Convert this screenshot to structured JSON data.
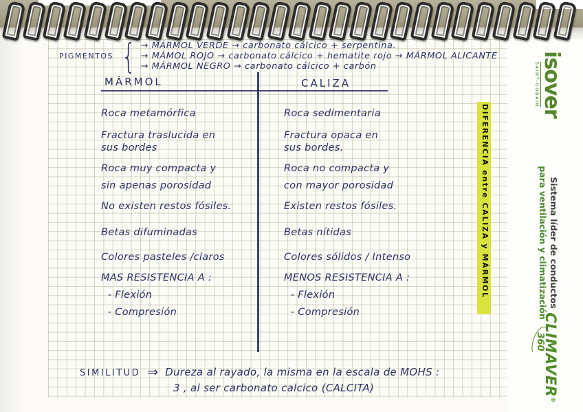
{
  "notebook": {
    "pigments": {
      "label": "PIGMENTOS",
      "brace": "{",
      "lines": [
        "→ MÁRMOL VERDE → carbonato cálcico + serpentina.",
        "→ MÁMOL ROJO → carbonato cálcico + hematite rojo → MÁRMOL ALICANTE",
        "→ MÁRMOL NEGRO → carbonato cálcico + carbón"
      ]
    },
    "table": {
      "left_header": "MÁRMOL",
      "right_header": "CALIZA",
      "rows": [
        {
          "left": "Roca metamórfica",
          "right": "Roca sedimentaria"
        },
        {
          "left": "Fractura traslucida en\nsus bordes",
          "right": "Fractura opaca en\nsus bordes."
        },
        {
          "left": "Roca muy compacta y\nsin apenas porosidad",
          "right": "Roca no compacta y\ncon mayor porosidad"
        },
        {
          "left": "No existen restos fósiles.",
          "right": "Existen restos fósiles."
        },
        {
          "left": "Betas difuminadas",
          "right": "Betas nítidas"
        },
        {
          "left": "Colores pasteles /claros",
          "right": "Colores sólidos / Intenso"
        },
        {
          "left": "MAS RESISTENCIA A :\n  - Flexión\n  - Compresión",
          "right": "MENOS RESISTENCIA A :\n  - Flexión\n  - Compresión"
        }
      ]
    },
    "side_note": "DIFERENCIA entre CALIZA y MÁRMOL",
    "similarity": {
      "label": "SIMILITUD",
      "arrow": "⇒",
      "line1": "Dureza al rayado, la misma en la escala de MOHS :",
      "line2": "3 , al ser carbonato calcico (CALCITA)"
    }
  },
  "margin_branding": {
    "brand": "isover",
    "brand_sub": "SAINT-GOBAIN",
    "tagline_line1": "Sistema líder de conductos",
    "tagline_line2": "para ventilación y climatización",
    "product": "CLIMAVER",
    "product_reg": "®",
    "product_360": "360"
  },
  "colors": {
    "ink": "#2c3163",
    "highlight": "#d9e340",
    "brand_green": "#55862b",
    "cover_tan": "#a9a489"
  }
}
